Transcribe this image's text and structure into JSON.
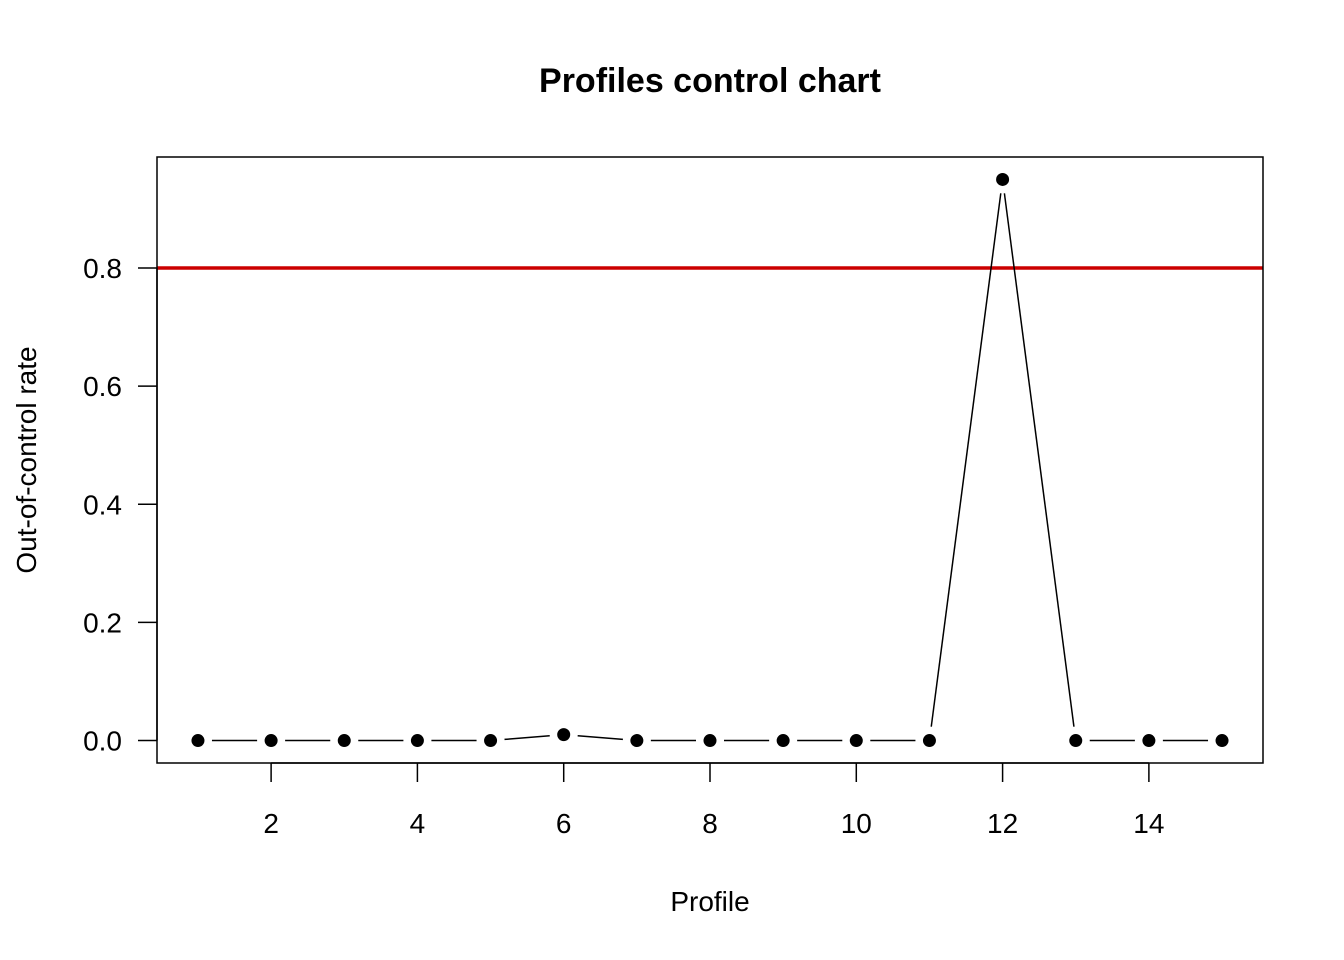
{
  "chart_data": {
    "type": "line",
    "title": "Profiles control chart",
    "xlabel": "Profile",
    "ylabel": "Out-of-control rate",
    "x": [
      1,
      2,
      3,
      4,
      5,
      6,
      7,
      8,
      9,
      10,
      11,
      12,
      13,
      14,
      15
    ],
    "series": [
      {
        "values": [
          0,
          0,
          0,
          0,
          0,
          0.01,
          0,
          0,
          0,
          0,
          0,
          0.95,
          0,
          0,
          0
        ]
      }
    ],
    "xlim": [
      0.44,
      15.56
    ],
    "ylim": [
      -0.038,
      0.988
    ],
    "xticks": [
      2,
      4,
      6,
      8,
      10,
      12,
      14
    ],
    "xtick_labels": [
      "2",
      "4",
      "6",
      "8",
      "10",
      "12",
      "14"
    ],
    "yticks": [
      0,
      0.2,
      0.4,
      0.6,
      0.8
    ],
    "ytick_labels": [
      "0.0",
      "0.2",
      "0.4",
      "0.6",
      "0.8"
    ],
    "hline": {
      "y": 0.8,
      "color": "#cc0000"
    },
    "point_style": "filled-circle",
    "line_style": "broken (type b)",
    "series_color": "#000000",
    "grid": false
  }
}
